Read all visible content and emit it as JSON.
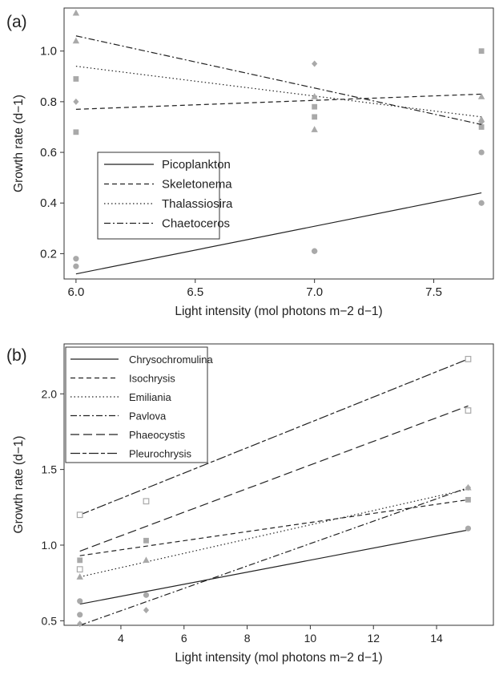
{
  "chart_data": [
    {
      "panel_label": "(a)",
      "type": "scatter",
      "xlabel": "Light intensity (mol photons m−2 d−1)",
      "ylabel": "Growth rate (d−1)",
      "xlim": [
        5.95,
        7.75
      ],
      "ylim": [
        0.1,
        1.17
      ],
      "xticks": [
        "6.0",
        "6.5",
        "7.0",
        "7.5"
      ],
      "xtick_values": [
        6.0,
        6.5,
        7.0,
        7.5
      ],
      "yticks": [
        "0.2",
        "0.4",
        "0.6",
        "0.8",
        "1.0"
      ],
      "ytick_values": [
        0.2,
        0.4,
        0.6,
        0.8,
        1.0
      ],
      "grid": false,
      "legend_position": "left-center",
      "series": [
        {
          "name": "Picoplankton",
          "dash": "solid",
          "marker": "circle",
          "x": [
            6.0,
            6.0,
            7.0,
            7.0,
            7.7,
            7.7
          ],
          "y": [
            0.18,
            0.15,
            0.21,
            0.21,
            0.6,
            0.4
          ],
          "line": {
            "x": [
              6.0,
              7.7
            ],
            "y": [
              0.12,
              0.44
            ]
          }
        },
        {
          "name": "Skeletonema",
          "dash": "dashed",
          "marker": "diamond",
          "x": [
            6.0,
            7.0,
            7.7
          ],
          "y": [
            0.8,
            0.95,
            0.72
          ],
          "line": {
            "x": [
              6.0,
              7.7
            ],
            "y": [
              0.77,
              0.83
            ]
          }
        },
        {
          "name": "Thalassiosira",
          "dash": "dotted",
          "marker": "square",
          "x": [
            6.0,
            6.0,
            7.0,
            7.0,
            7.7,
            7.7
          ],
          "y": [
            0.89,
            0.68,
            0.78,
            0.74,
            1.0,
            0.7
          ],
          "line": {
            "x": [
              6.0,
              7.7
            ],
            "y": [
              0.94,
              0.74
            ]
          }
        },
        {
          "name": "Chaetoceros",
          "dash": "dashdot",
          "marker": "triangle",
          "x": [
            6.0,
            6.0,
            7.0,
            7.0,
            7.7,
            7.7
          ],
          "y": [
            1.15,
            1.04,
            0.82,
            0.69,
            0.82,
            0.73
          ],
          "line": {
            "x": [
              6.0,
              7.7
            ],
            "y": [
              1.06,
              0.71
            ]
          }
        }
      ]
    },
    {
      "panel_label": "(b)",
      "type": "scatter",
      "xlabel": "Light intensity (mol photons m−2 d−1)",
      "ylabel": "Growth rate (d−1)",
      "xlim": [
        2.2,
        15.8
      ],
      "ylim": [
        0.47,
        2.33
      ],
      "xticks": [
        "4",
        "6",
        "8",
        "10",
        "12",
        "14"
      ],
      "xtick_values": [
        4,
        6,
        8,
        10,
        12,
        14
      ],
      "yticks": [
        "0.5",
        "1.0",
        "1.5",
        "2.0"
      ],
      "ytick_values": [
        0.5,
        1.0,
        1.5,
        2.0
      ],
      "grid": false,
      "legend_position": "top-left",
      "series": [
        {
          "name": "Chrysochromulina",
          "dash": "solid",
          "marker": "circle",
          "x": [
            2.7,
            2.7,
            4.8,
            15.0
          ],
          "y": [
            0.63,
            0.54,
            0.67,
            1.11
          ],
          "line": {
            "x": [
              2.7,
              15.0
            ],
            "y": [
              0.61,
              1.1
            ]
          }
        },
        {
          "name": "Isochrysis",
          "dash": "dashed",
          "marker": "square",
          "x": [
            2.7,
            4.8,
            15.0
          ],
          "y": [
            0.9,
            1.03,
            1.3
          ],
          "line": {
            "x": [
              2.7,
              15.0
            ],
            "y": [
              0.93,
              1.3
            ]
          }
        },
        {
          "name": "Emiliania",
          "dash": "dotted",
          "marker": "triangle",
          "x": [
            2.7,
            4.8,
            15.0
          ],
          "y": [
            0.79,
            0.9,
            1.38
          ],
          "line": {
            "x": [
              2.7,
              15.0
            ],
            "y": [
              0.79,
              1.37
            ]
          }
        },
        {
          "name": "Pavlova",
          "dash": "dashdot",
          "marker": "diamond",
          "x": [
            2.7,
            4.8,
            15.0
          ],
          "y": [
            0.48,
            0.57,
            1.38
          ],
          "line": {
            "x": [
              2.7,
              15.0
            ],
            "y": [
              0.47,
              1.38
            ]
          }
        },
        {
          "name": "Phaeocystis",
          "dash": "longdash",
          "marker": "open-square",
          "x": [
            2.7,
            4.8,
            15.0
          ],
          "y": [
            0.84,
            1.29,
            1.89
          ],
          "line": {
            "x": [
              2.7,
              15.0
            ],
            "y": [
              0.96,
              1.92
            ]
          }
        },
        {
          "name": "Pleurochrysis",
          "dash": "twodash",
          "marker": "open-square",
          "x": [
            2.7,
            15.0
          ],
          "y": [
            1.2,
            2.23
          ],
          "line": {
            "x": [
              2.7,
              15.0
            ],
            "y": [
              1.2,
              2.23
            ]
          }
        }
      ]
    }
  ],
  "colors": {
    "line": "#222222",
    "marker": "#a9a9a9",
    "frame": "#333333"
  }
}
